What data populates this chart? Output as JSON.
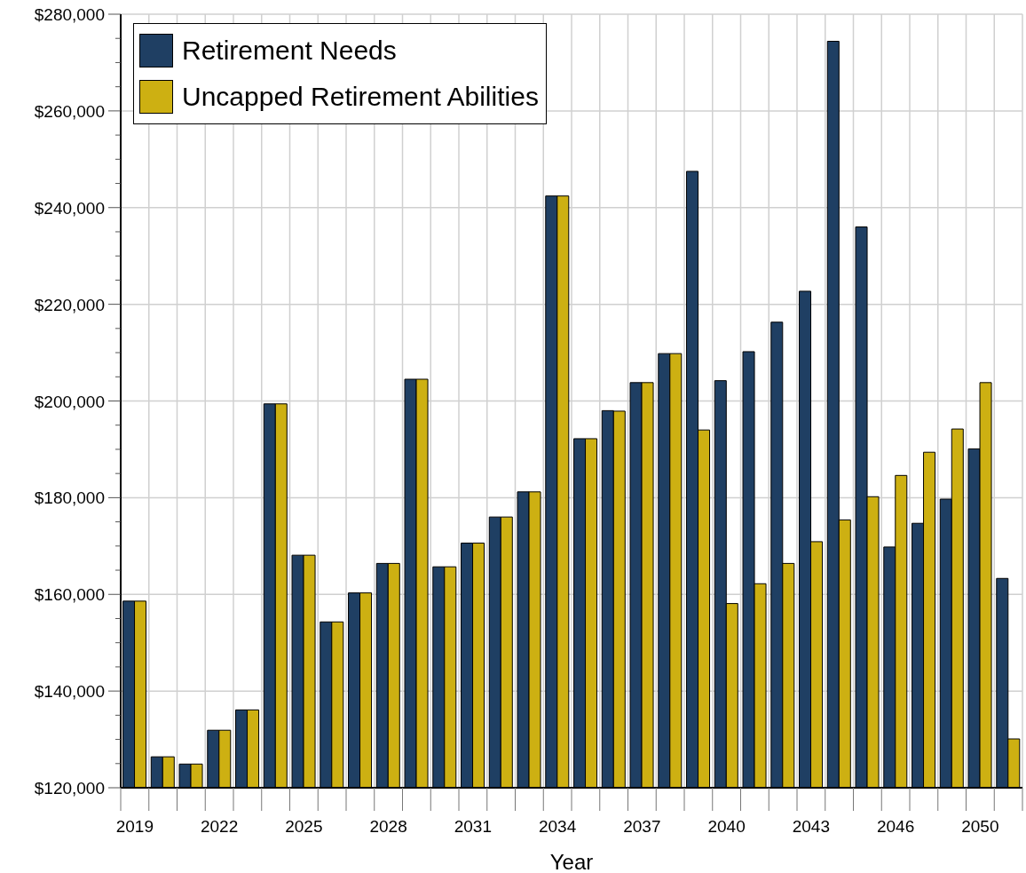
{
  "chart_data": {
    "type": "bar",
    "xlabel": "Year",
    "categories": [
      "2019",
      null,
      null,
      "2022",
      null,
      null,
      "2025",
      null,
      null,
      "2028",
      null,
      null,
      "2031",
      null,
      null,
      "2034",
      null,
      null,
      "2037",
      null,
      null,
      "2040",
      null,
      null,
      "2043",
      null,
      null,
      "2046",
      null,
      null,
      "2050",
      null
    ],
    "series": [
      {
        "name": "Retirement Needs",
        "color": "#1f3f63",
        "values": [
          158600,
          126400,
          124900,
          131900,
          136100,
          199400,
          168100,
          154300,
          160300,
          166400,
          204500,
          165700,
          170600,
          176000,
          181200,
          242400,
          192200,
          198000,
          203800,
          209800,
          247500,
          204200,
          210200,
          216300,
          222700,
          274400,
          236000,
          169800,
          174700,
          179700,
          190100,
          163300
        ]
      },
      {
        "name": "Uncapped Retirement Abilities",
        "color": "#cdb012",
        "values": [
          158600,
          126400,
          124900,
          131900,
          136100,
          199400,
          168100,
          154300,
          160300,
          166400,
          204500,
          165700,
          170600,
          176000,
          181200,
          242400,
          192200,
          197900,
          203800,
          209800,
          194000,
          158100,
          162200,
          166400,
          170900,
          175400,
          180200,
          184600,
          189400,
          194200,
          203800,
          130100
        ]
      }
    ],
    "ylim": [
      120000,
      280000
    ],
    "yticks": [
      {
        "value": 120000,
        "label": "$120,000"
      },
      {
        "value": 125000,
        "label": null
      },
      {
        "value": 130000,
        "label": null
      },
      {
        "value": 135000,
        "label": null
      },
      {
        "value": 140000,
        "label": "$140,000"
      },
      {
        "value": 145000,
        "label": null
      },
      {
        "value": 150000,
        "label": null
      },
      {
        "value": 155000,
        "label": null
      },
      {
        "value": 160000,
        "label": "$160,000"
      },
      {
        "value": 165000,
        "label": null
      },
      {
        "value": 170000,
        "label": null
      },
      {
        "value": 175000,
        "label": null
      },
      {
        "value": 180000,
        "label": "$180,000"
      },
      {
        "value": 185000,
        "label": null
      },
      {
        "value": 190000,
        "label": null
      },
      {
        "value": 195000,
        "label": null
      },
      {
        "value": 200000,
        "label": "$200,000"
      },
      {
        "value": 205000,
        "label": null
      },
      {
        "value": 210000,
        "label": null
      },
      {
        "value": 215000,
        "label": null
      },
      {
        "value": 220000,
        "label": "$220,000"
      },
      {
        "value": 225000,
        "label": null
      },
      {
        "value": 230000,
        "label": null
      },
      {
        "value": 235000,
        "label": null
      },
      {
        "value": 240000,
        "label": "$240,000"
      },
      {
        "value": 245000,
        "label": null
      },
      {
        "value": 250000,
        "label": null
      },
      {
        "value": 255000,
        "label": null
      },
      {
        "value": 260000,
        "label": "$260,000"
      },
      {
        "value": 265000,
        "label": null
      },
      {
        "value": 270000,
        "label": null
      },
      {
        "value": 275000,
        "label": null
      },
      {
        "value": 280000,
        "label": "$280,000"
      }
    ],
    "grid": true,
    "legend": "top left"
  }
}
